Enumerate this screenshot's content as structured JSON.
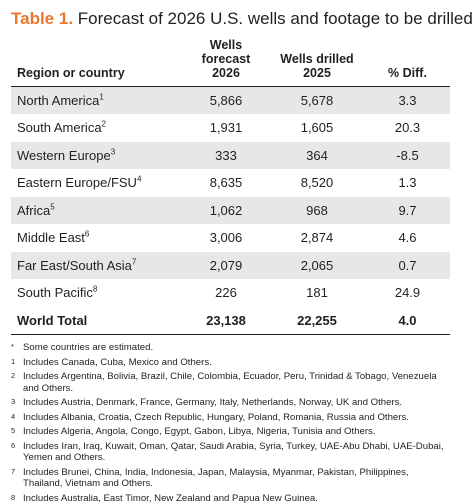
{
  "title": {
    "number": "Table 1.",
    "text": "Forecast of 2026 U.S. wells and footage to be drilled"
  },
  "table": {
    "headers": {
      "region": "Region or country",
      "wells_forecast_line1": "Wells forecast",
      "wells_forecast_line2": "2026",
      "wells_drilled_line1": "Wells drilled",
      "wells_drilled_line2": "2025",
      "pct_diff": "% Diff."
    },
    "rows": [
      {
        "region": "North America",
        "sup": "1",
        "forecast": "5,866",
        "drilled": "5,678",
        "diff": "3.3"
      },
      {
        "region": "South America",
        "sup": "2",
        "forecast": "1,931",
        "drilled": "1,605",
        "diff": "20.3"
      },
      {
        "region": "Western Europe",
        "sup": "3",
        "forecast": "333",
        "drilled": "364",
        "diff": "-8.5"
      },
      {
        "region": "Eastern Europe/FSU",
        "sup": "4",
        "forecast": "8,635",
        "drilled": "8,520",
        "diff": "1.3"
      },
      {
        "region": "Africa",
        "sup": "5",
        "forecast": "1,062",
        "drilled": "968",
        "diff": "9.7"
      },
      {
        "region": "Middle East",
        "sup": "6",
        "forecast": "3,006",
        "drilled": "2,874",
        "diff": "4.6"
      },
      {
        "region": "Far East/South Asia",
        "sup": "7",
        "forecast": "2,079",
        "drilled": "2,065",
        "diff": "0.7"
      },
      {
        "region": "South Pacific",
        "sup": "8",
        "forecast": "226",
        "drilled": "181",
        "diff": "24.9"
      }
    ],
    "total": {
      "region": "World Total",
      "forecast": "23,138",
      "drilled": "22,255",
      "diff": "4.0"
    }
  },
  "notes": [
    {
      "mark": "*",
      "text": "Some countries are estimated."
    },
    {
      "mark": "1",
      "text": "Includes Canada, Cuba, Mexico and Others."
    },
    {
      "mark": "2",
      "text": "Includes Argentina, Bolivia, Brazil, Chile, Colombia, Ecuador, Peru, Trinidad & Tobago, Venezuela and Others."
    },
    {
      "mark": "3",
      "text": "Includes Austria, Denmark, France, Germany, Italy, Netherlands, Norway, UK and Others."
    },
    {
      "mark": "4",
      "text": "Includes Albania, Croatia, Czech Republic, Hungary, Poland, Romania, Russia and Others."
    },
    {
      "mark": "5",
      "text": "Includes Algeria, Angola, Congo, Egypt, Gabon, Libya, Nigeria, Tunisia and Others."
    },
    {
      "mark": "6",
      "text": "Includes Iran, Iraq, Kuwait, Oman, Qatar, Saudi Arabia, Syria, Turkey, UAE-Abu Dhabi, UAE-Dubai, Yemen and Others."
    },
    {
      "mark": "7",
      "text": "Includes Brunei, China, India, Indonesia, Japan, Malaysia, Myanmar, Pakistan, Philippines, Thailand, Vietnam and Others."
    },
    {
      "mark": "8",
      "text": "Includes Australia, East Timor, New Zealand and Papua New Guinea."
    }
  ],
  "colors": {
    "accent": "#e8762d",
    "row_shade": "#e6e7e8",
    "text": "#231f20"
  }
}
